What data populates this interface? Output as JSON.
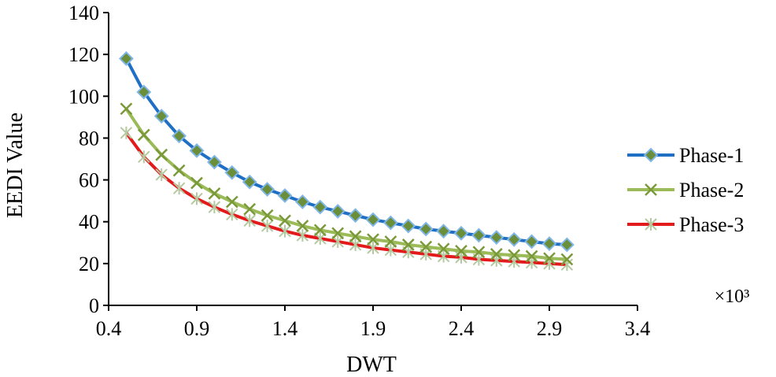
{
  "chart_data": {
    "type": "line",
    "title": "",
    "xlabel": "DWT",
    "ylabel": "EEDI Value",
    "x_multiplier": "×10³",
    "xlim": [
      0.4,
      3.4
    ],
    "ylim": [
      0,
      140
    ],
    "xticks": [
      "0.4",
      "0.9",
      "1.4",
      "1.9",
      "2.4",
      "2.9",
      "3.4"
    ],
    "yticks": [
      "0",
      "20",
      "40",
      "60",
      "80",
      "100",
      "120",
      "140"
    ],
    "grid": false,
    "legend_position": "right",
    "x": [
      0.5,
      0.6,
      0.7,
      0.8,
      0.9,
      1.0,
      1.1,
      1.2,
      1.3,
      1.4,
      1.5,
      1.6,
      1.7,
      1.8,
      1.9,
      2.0,
      2.1,
      2.2,
      2.3,
      2.4,
      2.5,
      2.6,
      2.7,
      2.8,
      2.9,
      3.0
    ],
    "series": [
      {
        "name": "Phase-1",
        "color": "#1f6fc5",
        "marker_fill": "#6b8e3a",
        "marker_edge": "#7fb6e8",
        "marker": "diamond",
        "values": [
          118,
          102,
          90.5,
          81,
          74,
          68.5,
          63.5,
          59,
          55.5,
          52.5,
          49.5,
          47,
          45,
          43,
          41,
          39.5,
          38,
          36.5,
          35.5,
          34.5,
          33.5,
          32.5,
          31.5,
          30.5,
          29.5,
          29
        ]
      },
      {
        "name": "Phase-2",
        "color": "#9bbb59",
        "marker_color": "#7a9a3a",
        "marker": "x",
        "values": [
          94,
          81.5,
          72,
          64.5,
          58.5,
          53.5,
          49.5,
          46,
          43,
          40.5,
          38,
          36,
          34.5,
          33,
          31.5,
          30.5,
          29,
          28,
          27,
          26,
          25.5,
          24.5,
          24,
          23.5,
          22.5,
          22
        ]
      },
      {
        "name": "Phase-3",
        "color": "#e31a1c",
        "marker_color": "#b5c9a0",
        "marker": "asterisk",
        "values": [
          82.5,
          71,
          62.5,
          56,
          51,
          47,
          43.5,
          40.5,
          38,
          35.5,
          33.5,
          32,
          30.5,
          29,
          27.5,
          26.5,
          25.5,
          24.5,
          23.5,
          23,
          22,
          21.5,
          21,
          20.5,
          20,
          19.5
        ]
      }
    ]
  }
}
